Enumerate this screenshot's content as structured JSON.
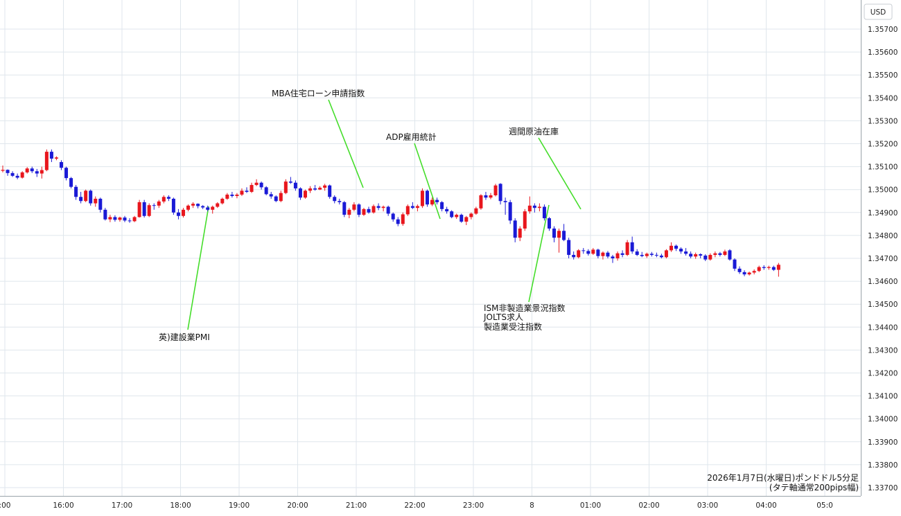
{
  "chart_data": {
    "type": "candlestick",
    "currency": "USD",
    "y_ticks": [
      "1.35700",
      "1.35600",
      "1.35500",
      "1.35400",
      "1.35300",
      "1.35200",
      "1.35100",
      "1.35000",
      "1.34900",
      "1.34800",
      "1.34700",
      "1.34600",
      "1.34500",
      "1.34400",
      "1.34300",
      "1.34200",
      "1.34100",
      "1.34000",
      "1.33900",
      "1.33800",
      "1.33700"
    ],
    "ylim": [
      1.3369,
      1.3577
    ],
    "x_ticks": [
      ":00",
      "16:00",
      "17:00",
      "18:00",
      "19:00",
      "20:00",
      "21:00",
      "22:00",
      "23:00",
      "8",
      "01:00",
      "02:00",
      "03:00",
      "04:00",
      "05:0"
    ],
    "caption_line1": "2026年1月7日(水曜日)ポンドドル5分足",
    "caption_line2": "(タテ軸通常200pips幅)",
    "annotations": [
      {
        "label": "英)建設業PMI"
      },
      {
        "label": "MBA住宅ローン申請指数"
      },
      {
        "label": "ADP雇用統計"
      },
      {
        "label": "週間原油在庫"
      },
      {
        "label": "ISM非製造業景況指数"
      },
      {
        "label": "JOLTS求人"
      },
      {
        "label": "製造業受注指数"
      }
    ],
    "colors": {
      "up": "#e8161d",
      "down": "#1a1ad6",
      "annotation_line": "#44dd2a",
      "grid": "#dfe6ec"
    },
    "candles": [
      {
        "o": 1.35082,
        "h": 1.35105,
        "l": 1.35075,
        "c": 1.35086
      },
      {
        "o": 1.35086,
        "h": 1.35088,
        "l": 1.3506,
        "c": 1.35072
      },
      {
        "o": 1.35072,
        "h": 1.3508,
        "l": 1.35055,
        "c": 1.3506
      },
      {
        "o": 1.3506,
        "h": 1.3507,
        "l": 1.35045,
        "c": 1.35052
      },
      {
        "o": 1.35052,
        "h": 1.3508,
        "l": 1.35048,
        "c": 1.35075
      },
      {
        "o": 1.35075,
        "h": 1.35098,
        "l": 1.3507,
        "c": 1.35092
      },
      {
        "o": 1.35092,
        "h": 1.351,
        "l": 1.35072,
        "c": 1.3508
      },
      {
        "o": 1.3508,
        "h": 1.3509,
        "l": 1.35055,
        "c": 1.3507
      },
      {
        "o": 1.3507,
        "h": 1.351,
        "l": 1.35048,
        "c": 1.35085
      },
      {
        "o": 1.35085,
        "h": 1.35175,
        "l": 1.3508,
        "c": 1.35165
      },
      {
        "o": 1.35165,
        "h": 1.35175,
        "l": 1.3512,
        "c": 1.35135
      },
      {
        "o": 1.35135,
        "h": 1.35145,
        "l": 1.35128,
        "c": 1.3514
      },
      {
        "o": 1.3512,
        "h": 1.35128,
        "l": 1.35085,
        "c": 1.35095
      },
      {
        "o": 1.35095,
        "h": 1.351,
        "l": 1.3504,
        "c": 1.3505
      },
      {
        "o": 1.3505,
        "h": 1.35055,
        "l": 1.35005,
        "c": 1.35012
      },
      {
        "o": 1.35012,
        "h": 1.3502,
        "l": 1.34955,
        "c": 1.34968
      },
      {
        "o": 1.34968,
        "h": 1.3499,
        "l": 1.3494,
        "c": 1.3495
      },
      {
        "o": 1.3495,
        "h": 1.35,
        "l": 1.34945,
        "c": 1.34995
      },
      {
        "o": 1.34995,
        "h": 1.35,
        "l": 1.3493,
        "c": 1.3494
      },
      {
        "o": 1.3494,
        "h": 1.3497,
        "l": 1.34925,
        "c": 1.3496
      },
      {
        "o": 1.3496,
        "h": 1.34965,
        "l": 1.349,
        "c": 1.34912
      },
      {
        "o": 1.34912,
        "h": 1.3492,
        "l": 1.34865,
        "c": 1.3487
      },
      {
        "o": 1.3487,
        "h": 1.3489,
        "l": 1.34858,
        "c": 1.3488
      },
      {
        "o": 1.3488,
        "h": 1.34888,
        "l": 1.3486,
        "c": 1.34868
      },
      {
        "o": 1.34868,
        "h": 1.34882,
        "l": 1.3486,
        "c": 1.34878
      },
      {
        "o": 1.34878,
        "h": 1.34885,
        "l": 1.34858,
        "c": 1.34865
      },
      {
        "o": 1.34865,
        "h": 1.34875,
        "l": 1.34855,
        "c": 1.34862
      },
      {
        "o": 1.34862,
        "h": 1.34885,
        "l": 1.34858,
        "c": 1.3488
      },
      {
        "o": 1.3488,
        "h": 1.34955,
        "l": 1.34878,
        "c": 1.34945
      },
      {
        "o": 1.34945,
        "h": 1.34955,
        "l": 1.34878,
        "c": 1.34885
      },
      {
        "o": 1.34885,
        "h": 1.3494,
        "l": 1.3488,
        "c": 1.34932
      },
      {
        "o": 1.34932,
        "h": 1.3494,
        "l": 1.34912,
        "c": 1.3493
      },
      {
        "o": 1.3493,
        "h": 1.34955,
        "l": 1.3492,
        "c": 1.34948
      },
      {
        "o": 1.34948,
        "h": 1.34975,
        "l": 1.3494,
        "c": 1.34968
      },
      {
        "o": 1.34968,
        "h": 1.34975,
        "l": 1.3495,
        "c": 1.3496
      },
      {
        "o": 1.3496,
        "h": 1.34965,
        "l": 1.3489,
        "c": 1.349
      },
      {
        "o": 1.349,
        "h": 1.34915,
        "l": 1.3487,
        "c": 1.34885
      },
      {
        "o": 1.34885,
        "h": 1.3492,
        "l": 1.34878,
        "c": 1.34912
      },
      {
        "o": 1.34912,
        "h": 1.34935,
        "l": 1.34905,
        "c": 1.3493
      },
      {
        "o": 1.3493,
        "h": 1.34945,
        "l": 1.3492,
        "c": 1.34938
      },
      {
        "o": 1.34938,
        "h": 1.3494,
        "l": 1.34918,
        "c": 1.34928
      },
      {
        "o": 1.34928,
        "h": 1.34932,
        "l": 1.34915,
        "c": 1.34922
      },
      {
        "o": 1.34922,
        "h": 1.3493,
        "l": 1.34905,
        "c": 1.34912
      },
      {
        "o": 1.34912,
        "h": 1.3493,
        "l": 1.34895,
        "c": 1.34925
      },
      {
        "o": 1.34925,
        "h": 1.34945,
        "l": 1.3492,
        "c": 1.3494
      },
      {
        "o": 1.3494,
        "h": 1.34965,
        "l": 1.34935,
        "c": 1.3496
      },
      {
        "o": 1.3496,
        "h": 1.34985,
        "l": 1.34955,
        "c": 1.34978
      },
      {
        "o": 1.34978,
        "h": 1.3499,
        "l": 1.34965,
        "c": 1.34972
      },
      {
        "o": 1.34972,
        "h": 1.34985,
        "l": 1.34962,
        "c": 1.34978
      },
      {
        "o": 1.34978,
        "h": 1.35005,
        "l": 1.34972,
        "c": 1.34995
      },
      {
        "o": 1.34995,
        "h": 1.3501,
        "l": 1.34985,
        "c": 1.3499
      },
      {
        "o": 1.3499,
        "h": 1.3503,
        "l": 1.34985,
        "c": 1.3502
      },
      {
        "o": 1.3502,
        "h": 1.35045,
        "l": 1.35015,
        "c": 1.3503
      },
      {
        "o": 1.3503,
        "h": 1.35035,
        "l": 1.35,
        "c": 1.3501
      },
      {
        "o": 1.3501,
        "h": 1.35015,
        "l": 1.34975,
        "c": 1.3498
      },
      {
        "o": 1.3498,
        "h": 1.3499,
        "l": 1.3496,
        "c": 1.3497
      },
      {
        "o": 1.3497,
        "h": 1.34975,
        "l": 1.34945,
        "c": 1.3495
      },
      {
        "o": 1.3495,
        "h": 1.34995,
        "l": 1.34945,
        "c": 1.34985
      },
      {
        "o": 1.34985,
        "h": 1.35045,
        "l": 1.3498,
        "c": 1.35035
      },
      {
        "o": 1.35035,
        "h": 1.35055,
        "l": 1.35025,
        "c": 1.3503
      },
      {
        "o": 1.3503,
        "h": 1.3504,
        "l": 1.34995,
        "c": 1.35005
      },
      {
        "o": 1.35005,
        "h": 1.3501,
        "l": 1.34955,
        "c": 1.34965
      },
      {
        "o": 1.34965,
        "h": 1.35,
        "l": 1.3496,
        "c": 1.34995
      },
      {
        "o": 1.34995,
        "h": 1.35015,
        "l": 1.34985,
        "c": 1.35005
      },
      {
        "o": 1.35005,
        "h": 1.3502,
        "l": 1.34995,
        "c": 1.35
      },
      {
        "o": 1.35,
        "h": 1.35015,
        "l": 1.34998,
        "c": 1.35008
      },
      {
        "o": 1.35008,
        "h": 1.35025,
        "l": 1.34995,
        "c": 1.35018
      },
      {
        "o": 1.35018,
        "h": 1.35022,
        "l": 1.3496,
        "c": 1.34968
      },
      {
        "o": 1.34968,
        "h": 1.34975,
        "l": 1.3494,
        "c": 1.3495
      },
      {
        "o": 1.3495,
        "h": 1.3496,
        "l": 1.34935,
        "c": 1.34945
      },
      {
        "o": 1.34945,
        "h": 1.3495,
        "l": 1.3488,
        "c": 1.3489
      },
      {
        "o": 1.3489,
        "h": 1.3492,
        "l": 1.34875,
        "c": 1.34912
      },
      {
        "o": 1.34912,
        "h": 1.34945,
        "l": 1.34905,
        "c": 1.34935
      },
      {
        "o": 1.34935,
        "h": 1.3494,
        "l": 1.3488,
        "c": 1.3489
      },
      {
        "o": 1.3489,
        "h": 1.3492,
        "l": 1.34885,
        "c": 1.34915
      },
      {
        "o": 1.34915,
        "h": 1.34925,
        "l": 1.34895,
        "c": 1.349
      },
      {
        "o": 1.349,
        "h": 1.34935,
        "l": 1.34895,
        "c": 1.34928
      },
      {
        "o": 1.34928,
        "h": 1.3494,
        "l": 1.3491,
        "c": 1.3492
      },
      {
        "o": 1.3492,
        "h": 1.3493,
        "l": 1.34905,
        "c": 1.34925
      },
      {
        "o": 1.34925,
        "h": 1.3493,
        "l": 1.34885,
        "c": 1.34895
      },
      {
        "o": 1.34895,
        "h": 1.349,
        "l": 1.3486,
        "c": 1.3487
      },
      {
        "o": 1.3487,
        "h": 1.3488,
        "l": 1.3484,
        "c": 1.3485
      },
      {
        "o": 1.3485,
        "h": 1.349,
        "l": 1.34842,
        "c": 1.34892
      },
      {
        "o": 1.34892,
        "h": 1.34935,
        "l": 1.34885,
        "c": 1.34928
      },
      {
        "o": 1.34928,
        "h": 1.34945,
        "l": 1.34915,
        "c": 1.3492
      },
      {
        "o": 1.3492,
        "h": 1.34935,
        "l": 1.34905,
        "c": 1.34928
      },
      {
        "o": 1.34928,
        "h": 1.35005,
        "l": 1.3492,
        "c": 1.34995
      },
      {
        "o": 1.34995,
        "h": 1.35,
        "l": 1.34925,
        "c": 1.34935
      },
      {
        "o": 1.34935,
        "h": 1.34965,
        "l": 1.34928,
        "c": 1.34955
      },
      {
        "o": 1.34955,
        "h": 1.34965,
        "l": 1.34935,
        "c": 1.34945
      },
      {
        "o": 1.34945,
        "h": 1.3495,
        "l": 1.34905,
        "c": 1.34915
      },
      {
        "o": 1.34915,
        "h": 1.34925,
        "l": 1.34895,
        "c": 1.34905
      },
      {
        "o": 1.34905,
        "h": 1.3491,
        "l": 1.34875,
        "c": 1.3488
      },
      {
        "o": 1.3488,
        "h": 1.34895,
        "l": 1.34872,
        "c": 1.3489
      },
      {
        "o": 1.3489,
        "h": 1.34895,
        "l": 1.34855,
        "c": 1.3486
      },
      {
        "o": 1.3486,
        "h": 1.34885,
        "l": 1.34845,
        "c": 1.3488
      },
      {
        "o": 1.3488,
        "h": 1.349,
        "l": 1.3487,
        "c": 1.34895
      },
      {
        "o": 1.34895,
        "h": 1.34925,
        "l": 1.3489,
        "c": 1.34918
      },
      {
        "o": 1.34918,
        "h": 1.3498,
        "l": 1.34912,
        "c": 1.34975
      },
      {
        "o": 1.34975,
        "h": 1.3499,
        "l": 1.34955,
        "c": 1.34965
      },
      {
        "o": 1.34965,
        "h": 1.34985,
        "l": 1.34958,
        "c": 1.34975
      },
      {
        "o": 1.34975,
        "h": 1.35025,
        "l": 1.3497,
        "c": 1.35018
      },
      {
        "o": 1.35025,
        "h": 1.35028,
        "l": 1.34935,
        "c": 1.3495
      },
      {
        "o": 1.3495,
        "h": 1.34965,
        "l": 1.3489,
        "c": 1.34945
      },
      {
        "o": 1.34945,
        "h": 1.34955,
        "l": 1.3485,
        "c": 1.34865
      },
      {
        "o": 1.34865,
        "h": 1.34875,
        "l": 1.3477,
        "c": 1.3479
      },
      {
        "o": 1.3479,
        "h": 1.3484,
        "l": 1.34775,
        "c": 1.3483
      },
      {
        "o": 1.3483,
        "h": 1.34915,
        "l": 1.3482,
        "c": 1.34905
      },
      {
        "o": 1.34905,
        "h": 1.3497,
        "l": 1.34895,
        "c": 1.3493
      },
      {
        "o": 1.3493,
        "h": 1.3494,
        "l": 1.349,
        "c": 1.3492
      },
      {
        "o": 1.3492,
        "h": 1.3494,
        "l": 1.34905,
        "c": 1.34925
      },
      {
        "o": 1.34925,
        "h": 1.34935,
        "l": 1.34865,
        "c": 1.34875
      },
      {
        "o": 1.34875,
        "h": 1.3488,
        "l": 1.3482,
        "c": 1.3483
      },
      {
        "o": 1.3483,
        "h": 1.3484,
        "l": 1.3477,
        "c": 1.3479
      },
      {
        "o": 1.3479,
        "h": 1.3483,
        "l": 1.34725,
        "c": 1.3482
      },
      {
        "o": 1.3482,
        "h": 1.3485,
        "l": 1.34775,
        "c": 1.3478
      },
      {
        "o": 1.3478,
        "h": 1.3479,
        "l": 1.347,
        "c": 1.34715
      },
      {
        "o": 1.34715,
        "h": 1.3473,
        "l": 1.34695,
        "c": 1.34705
      },
      {
        "o": 1.34705,
        "h": 1.3474,
        "l": 1.347,
        "c": 1.34735
      },
      {
        "o": 1.34735,
        "h": 1.34745,
        "l": 1.3472,
        "c": 1.34732
      },
      {
        "o": 1.34732,
        "h": 1.3474,
        "l": 1.34712,
        "c": 1.3472
      },
      {
        "o": 1.3472,
        "h": 1.34745,
        "l": 1.34715,
        "c": 1.34738
      },
      {
        "o": 1.34738,
        "h": 1.34742,
        "l": 1.347,
        "c": 1.3471
      },
      {
        "o": 1.3471,
        "h": 1.3473,
        "l": 1.34695,
        "c": 1.34725
      },
      {
        "o": 1.34725,
        "h": 1.34732,
        "l": 1.347,
        "c": 1.34708
      },
      {
        "o": 1.34708,
        "h": 1.34715,
        "l": 1.3468,
        "c": 1.347
      },
      {
        "o": 1.347,
        "h": 1.3473,
        "l": 1.3469,
        "c": 1.34722
      },
      {
        "o": 1.34722,
        "h": 1.34735,
        "l": 1.34705,
        "c": 1.34715
      },
      {
        "o": 1.34715,
        "h": 1.3478,
        "l": 1.3471,
        "c": 1.3477
      },
      {
        "o": 1.3477,
        "h": 1.34795,
        "l": 1.3472,
        "c": 1.3473
      },
      {
        "o": 1.3473,
        "h": 1.3474,
        "l": 1.3471,
        "c": 1.34715
      },
      {
        "o": 1.34715,
        "h": 1.34728,
        "l": 1.34705,
        "c": 1.3471
      },
      {
        "o": 1.3471,
        "h": 1.34725,
        "l": 1.34702,
        "c": 1.3472
      },
      {
        "o": 1.3472,
        "h": 1.34728,
        "l": 1.34708,
        "c": 1.34715
      },
      {
        "o": 1.34715,
        "h": 1.34725,
        "l": 1.34705,
        "c": 1.34712
      },
      {
        "o": 1.34712,
        "h": 1.3472,
        "l": 1.347,
        "c": 1.34705
      },
      {
        "o": 1.34705,
        "h": 1.3474,
        "l": 1.347,
        "c": 1.34735
      },
      {
        "o": 1.34735,
        "h": 1.3477,
        "l": 1.34728,
        "c": 1.34755
      },
      {
        "o": 1.34755,
        "h": 1.3476,
        "l": 1.34732,
        "c": 1.34742
      },
      {
        "o": 1.34742,
        "h": 1.34748,
        "l": 1.3472,
        "c": 1.3473
      },
      {
        "o": 1.3473,
        "h": 1.34745,
        "l": 1.34712,
        "c": 1.3472
      },
      {
        "o": 1.3472,
        "h": 1.3473,
        "l": 1.347,
        "c": 1.34708
      },
      {
        "o": 1.34708,
        "h": 1.34725,
        "l": 1.34698,
        "c": 1.34718
      },
      {
        "o": 1.34718,
        "h": 1.34722,
        "l": 1.347,
        "c": 1.34712
      },
      {
        "o": 1.34712,
        "h": 1.34718,
        "l": 1.34688,
        "c": 1.34695
      },
      {
        "o": 1.34695,
        "h": 1.34722,
        "l": 1.3469,
        "c": 1.34715
      },
      {
        "o": 1.34715,
        "h": 1.3473,
        "l": 1.34705,
        "c": 1.34722
      },
      {
        "o": 1.34722,
        "h": 1.34728,
        "l": 1.34708,
        "c": 1.34715
      },
      {
        "o": 1.34715,
        "h": 1.34738,
        "l": 1.3471,
        "c": 1.3473
      },
      {
        "o": 1.34735,
        "h": 1.3474,
        "l": 1.3469,
        "c": 1.34695
      },
      {
        "o": 1.34695,
        "h": 1.347,
        "l": 1.34645,
        "c": 1.34655
      },
      {
        "o": 1.34655,
        "h": 1.34665,
        "l": 1.34632,
        "c": 1.3464
      },
      {
        "o": 1.3464,
        "h": 1.34648,
        "l": 1.34622,
        "c": 1.3463
      },
      {
        "o": 1.3463,
        "h": 1.34642,
        "l": 1.34625,
        "c": 1.34638
      },
      {
        "o": 1.34638,
        "h": 1.34652,
        "l": 1.3463,
        "c": 1.34645
      },
      {
        "o": 1.34645,
        "h": 1.34668,
        "l": 1.3464,
        "c": 1.34662
      },
      {
        "o": 1.34662,
        "h": 1.3467,
        "l": 1.3465,
        "c": 1.34658
      },
      {
        "o": 1.34658,
        "h": 1.34668,
        "l": 1.3465,
        "c": 1.34662
      },
      {
        "o": 1.34662,
        "h": 1.34668,
        "l": 1.34645,
        "c": 1.3465
      },
      {
        "o": 1.3465,
        "h": 1.3468,
        "l": 1.3462,
        "c": 1.34672
      }
    ]
  }
}
